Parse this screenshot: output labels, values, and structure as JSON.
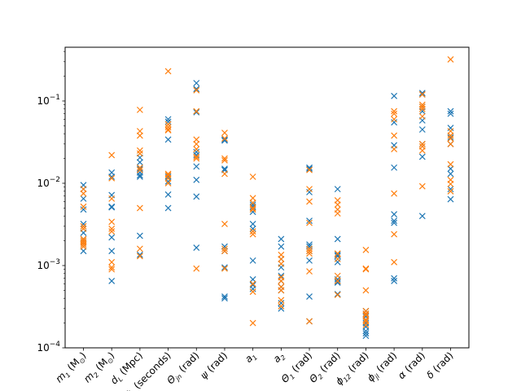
{
  "chart_data": {
    "type": "scatter",
    "marker": "x",
    "yscale": "log",
    "ylim": [
      0.0001,
      0.45
    ],
    "y_ticks": [
      {
        "value": 0.0001,
        "base": "10",
        "exp": "−4"
      },
      {
        "value": 0.001,
        "base": "10",
        "exp": "−3"
      },
      {
        "value": 0.01,
        "base": "10",
        "exp": "−2"
      },
      {
        "value": 0.1,
        "base": "10",
        "exp": "−1"
      }
    ],
    "categories": [
      {
        "main": "m",
        "sub": "1",
        "rest": " (M",
        "rest_sub": "⊙",
        "tail": ")"
      },
      {
        "main": "m",
        "sub": "2",
        "rest": " (M",
        "rest_sub": "⊙",
        "tail": ")"
      },
      {
        "main": "d",
        "sub": "L",
        "rest": " (Mpc)",
        "rest_sub": "",
        "tail": ""
      },
      {
        "main": "t",
        "sub": "c",
        "rest": " (seconds)",
        "rest_sub": "",
        "tail": ""
      },
      {
        "main": "Θ",
        "sub": "jn",
        "rest": " (rad)",
        "rest_sub": "",
        "tail": ""
      },
      {
        "main": "ψ",
        "sub": "",
        "rest": " (rad)",
        "rest_sub": "",
        "tail": ""
      },
      {
        "main": "a",
        "sub": "1",
        "rest": "",
        "rest_sub": "",
        "tail": ""
      },
      {
        "main": "a",
        "sub": "2",
        "rest": "",
        "rest_sub": "",
        "tail": ""
      },
      {
        "main": "Θ",
        "sub": "1",
        "rest": " (rad)",
        "rest_sub": "",
        "tail": ""
      },
      {
        "main": "Θ",
        "sub": "2",
        "rest": " (rad)",
        "rest_sub": "",
        "tail": ""
      },
      {
        "main": "ϕ",
        "sub": "12",
        "rest": " (rad)",
        "rest_sub": "",
        "tail": ""
      },
      {
        "main": "ϕ",
        "sub": "jl",
        "rest": " (rad)",
        "rest_sub": "",
        "tail": ""
      },
      {
        "main": "α",
        "sub": "",
        "rest": " (rad)",
        "rest_sub": "",
        "tail": ""
      },
      {
        "main": "δ",
        "sub": "",
        "rest": " (rad)",
        "rest_sub": "",
        "tail": ""
      }
    ],
    "series": [
      {
        "color": "#1f77b4",
        "values": [
          [
            0.0095,
            0.0085,
            0.0065,
            0.0048,
            0.0032,
            0.0025,
            0.0021,
            0.0019,
            0.0015
          ],
          [
            0.0135,
            0.012,
            0.0072,
            0.0052,
            0.0051,
            0.0022,
            0.0015,
            0.00065
          ],
          [
            0.0205,
            0.018,
            0.015,
            0.0135,
            0.0125,
            0.012,
            0.0023,
            0.00135
          ],
          [
            0.06,
            0.056,
            0.034,
            0.012,
            0.0105,
            0.0073,
            0.005
          ],
          [
            0.165,
            0.14,
            0.073,
            0.024,
            0.022,
            0.016,
            0.011,
            0.0069,
            0.00165
          ],
          [
            0.034,
            0.033,
            0.015,
            0.0145,
            0.0017,
            0.0015,
            0.00095,
            0.00042,
            0.0004
          ],
          [
            0.0055,
            0.0052,
            0.0045,
            0.0032,
            0.0028,
            0.00115,
            0.00068,
            0.00058,
            0.00052
          ],
          [
            0.0021,
            0.0017,
            0.0012,
            0.00095,
            0.00075,
            0.00065,
            0.00055,
            0.0005,
            0.00035,
            0.0003
          ],
          [
            0.0155,
            0.015,
            0.0078,
            0.0035,
            0.0018,
            0.0017,
            0.0015,
            0.00115,
            0.00042,
            0.00021
          ],
          [
            0.0085,
            0.0021,
            0.00135,
            0.0013,
            0.0011,
            0.00068,
            0.00064,
            0.00062,
            0.00045
          ],
          [
            0.00028,
            0.00026,
            0.00024,
            0.00022,
            0.0002,
            0.00018,
            0.00016,
            0.00015,
            0.00014
          ],
          [
            0.115,
            0.055,
            0.029,
            0.0155,
            0.0042,
            0.0035,
            0.0033,
            0.0007,
            0.00065
          ],
          [
            0.125,
            0.12,
            0.085,
            0.075,
            0.058,
            0.045,
            0.03,
            0.021,
            0.004
          ],
          [
            0.075,
            0.07,
            0.047,
            0.036,
            0.03,
            0.015,
            0.013,
            0.0085,
            0.0064
          ]
        ]
      },
      {
        "color": "#ff7f0e",
        "values": [
          [
            0.0085,
            0.0075,
            0.0052,
            0.003,
            0.0028,
            0.0021,
            0.002,
            0.0019,
            0.0018,
            0.0017
          ],
          [
            0.022,
            0.0115,
            0.0065,
            0.0034,
            0.0028,
            0.0026,
            0.0011,
            0.00095,
            0.0009
          ],
          [
            0.078,
            0.043,
            0.038,
            0.025,
            0.023,
            0.0155,
            0.0145,
            0.005,
            0.0016,
            0.0013
          ],
          [
            0.23,
            0.052,
            0.048,
            0.045,
            0.044,
            0.013,
            0.0125,
            0.0115,
            0.01
          ],
          [
            0.135,
            0.075,
            0.034,
            0.03,
            0.026,
            0.021,
            0.02,
            0.00092
          ],
          [
            0.041,
            0.035,
            0.02,
            0.019,
            0.013,
            0.0032,
            0.0016,
            0.0015,
            0.00092
          ],
          [
            0.012,
            0.0066,
            0.0058,
            0.005,
            0.0048,
            0.0026,
            0.0024,
            0.0006,
            0.00048,
            0.0002
          ],
          [
            0.00135,
            0.0012,
            0.00105,
            0.00072,
            0.00065,
            0.00055,
            0.0005,
            0.00038,
            0.00032
          ],
          [
            0.0145,
            0.0085,
            0.006,
            0.0033,
            0.0016,
            0.0015,
            0.0014,
            0.00085,
            0.00021
          ],
          [
            0.0062,
            0.0055,
            0.0048,
            0.0043,
            0.0014,
            0.0012,
            0.00075,
            0.00065,
            0.00044
          ],
          [
            0.00155,
            0.00092,
            0.0009,
            0.0005,
            0.00028,
            0.00026,
            0.00025,
            0.00022,
            0.00021,
            0.00019
          ],
          [
            0.075,
            0.07,
            0.06,
            0.038,
            0.026,
            0.0075,
            0.0024,
            0.0011
          ],
          [
            0.12,
            0.09,
            0.085,
            0.08,
            0.065,
            0.03,
            0.028,
            0.025,
            0.0092
          ],
          [
            0.32,
            0.043,
            0.038,
            0.035,
            0.03,
            0.017,
            0.011,
            0.0098,
            0.008
          ]
        ]
      }
    ]
  }
}
